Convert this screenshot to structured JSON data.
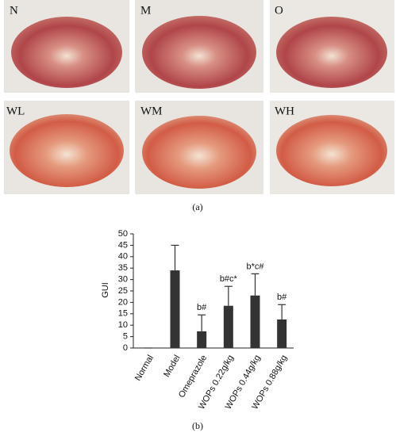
{
  "panel_a": {
    "labels": [
      "N",
      "M",
      "O",
      "WL",
      "WM",
      "WH"
    ],
    "caption": "(a)"
  },
  "chart_data": {
    "type": "bar",
    "caption": "(b)",
    "y_label": "GUI",
    "categories": [
      "Normal",
      "Model",
      "Omeprazole",
      "WOPs 0.22g/kg",
      "WOPs 0.44g/kg",
      "WOPs 0.88g/kg"
    ],
    "values": [
      0,
      34,
      7.3,
      18.5,
      23,
      12.5
    ],
    "errors": [
      0,
      11,
      7.2,
      8.5,
      9.5,
      6.5
    ],
    "annotations": [
      null,
      null,
      "b#",
      "b#c*",
      "b*c#",
      "b#"
    ],
    "color": "#333333",
    "ylim": [
      0,
      50
    ],
    "yticks": [
      0,
      5,
      10,
      15,
      20,
      25,
      30,
      35,
      40,
      45,
      50
    ]
  }
}
